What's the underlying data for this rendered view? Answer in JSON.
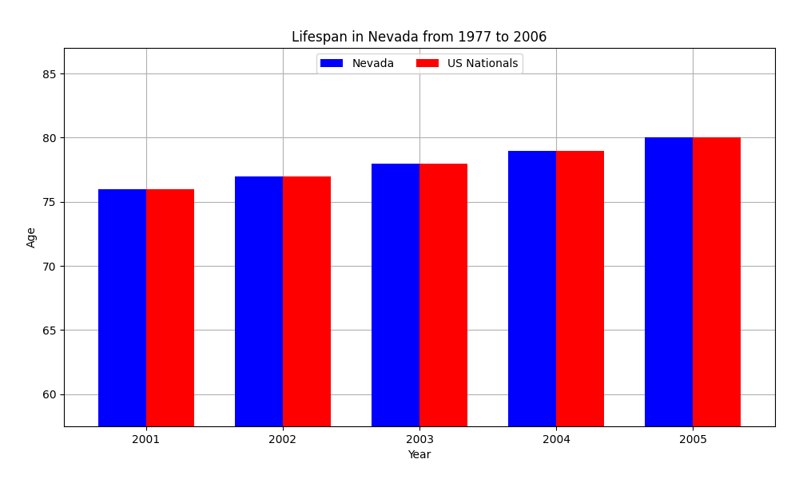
{
  "chart_data": {
    "type": "bar",
    "title": "Lifespan in Nevada from 1977 to 2006",
    "x_label": "Year",
    "y_label": "Age",
    "categories": [
      "2001",
      "2002",
      "2003",
      "2004",
      "2005"
    ],
    "series": [
      {
        "name": "Nevada",
        "color": "#0000ff",
        "values": [
          76,
          77,
          78,
          79,
          80
        ]
      },
      {
        "name": "US Nationals",
        "color": "#ff0000",
        "values": [
          76,
          77,
          78,
          79,
          80
        ]
      }
    ],
    "ylim": [
      57.5,
      87
    ],
    "yticks": [
      60,
      65,
      70,
      75,
      80,
      85
    ],
    "grid": true,
    "legend": "upper center"
  }
}
